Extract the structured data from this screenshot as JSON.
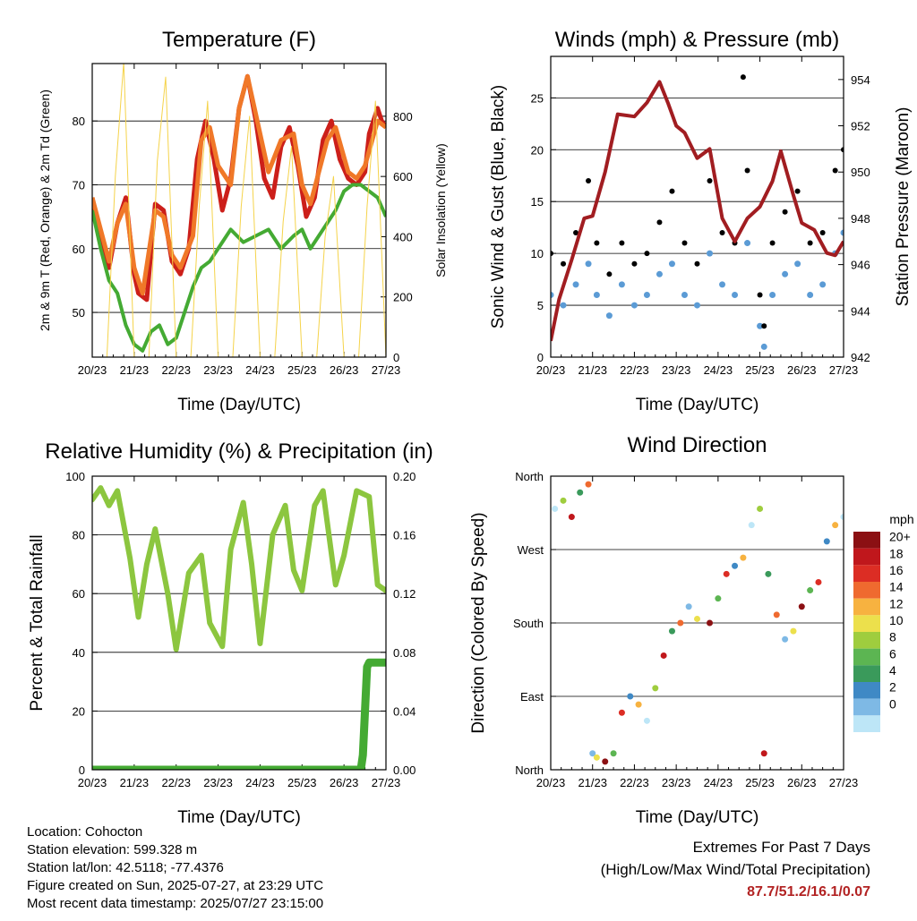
{
  "colors": {
    "temp2m": "#cc1f1a",
    "temp9m": "#f07828",
    "dewpoint": "#44aa33",
    "solar": "#f5d34a",
    "wind": "#5b9bd5",
    "gust": "#000000",
    "pressure": "#a11d21",
    "rh": "#8cc63f",
    "precip": "#44aa33",
    "extreme": "#b22222"
  },
  "chart_data": [
    {
      "type": "line",
      "title": "Temperature (F)",
      "xlabel": "Time (Day/UTC)",
      "ylabel": "2m & 9m T (Red, Orange) & 2m Td (Green)",
      "ylabel_right": "Solar Insolation (Yellow)",
      "x_ticks": [
        "20/23",
        "21/23",
        "22/23",
        "23/23",
        "24/23",
        "25/23",
        "26/23",
        "27/23"
      ],
      "x_range_days": [
        0,
        7
      ],
      "ylim": [
        43,
        89
      ],
      "y_ticks": [
        50,
        60,
        70,
        80
      ],
      "ylim_right": [
        0,
        975
      ],
      "y_ticks_right": [
        0,
        200,
        400,
        600,
        800
      ],
      "series": [
        {
          "name": "2m T",
          "color": "#cc1f1a",
          "x": [
            0,
            0.2,
            0.4,
            0.6,
            0.8,
            1.0,
            1.1,
            1.3,
            1.5,
            1.7,
            1.9,
            2.1,
            2.3,
            2.5,
            2.7,
            2.9,
            3.1,
            3.3,
            3.5,
            3.7,
            3.9,
            4.1,
            4.3,
            4.5,
            4.7,
            4.9,
            5.1,
            5.3,
            5.5,
            5.7,
            5.9,
            6.1,
            6.3,
            6.5,
            6.6,
            6.8,
            6.9,
            7.0
          ],
          "y": [
            68,
            62,
            57,
            64,
            68,
            56,
            53,
            52,
            67,
            66,
            58,
            56,
            60,
            74,
            80,
            74,
            66,
            71,
            82,
            87,
            80,
            71,
            68,
            76,
            79,
            73,
            65,
            68,
            77,
            80,
            74,
            71,
            70,
            72,
            78,
            82,
            80,
            79
          ]
        },
        {
          "name": "9m T",
          "color": "#f07828",
          "x": [
            0,
            0.2,
            0.4,
            0.6,
            0.8,
            1.0,
            1.2,
            1.5,
            1.7,
            1.9,
            2.1,
            2.4,
            2.6,
            2.8,
            3.0,
            3.3,
            3.5,
            3.7,
            3.9,
            4.2,
            4.5,
            4.8,
            5.0,
            5.2,
            5.4,
            5.6,
            5.8,
            6.1,
            6.3,
            6.5,
            6.8,
            7.0
          ],
          "y": [
            68,
            63,
            58,
            64,
            67,
            57,
            53,
            66,
            65,
            59,
            57,
            62,
            77,
            79,
            73,
            70,
            82,
            87,
            81,
            72,
            77,
            78,
            70,
            67,
            72,
            77,
            79,
            72,
            71,
            73,
            80,
            79
          ]
        },
        {
          "name": "2m Td",
          "color": "#44aa33",
          "x": [
            0,
            0.2,
            0.4,
            0.6,
            0.8,
            1.0,
            1.2,
            1.4,
            1.6,
            1.8,
            2.0,
            2.2,
            2.4,
            2.6,
            2.8,
            3.0,
            3.3,
            3.6,
            3.9,
            4.2,
            4.5,
            4.8,
            5.0,
            5.2,
            5.4,
            5.6,
            5.8,
            6.0,
            6.2,
            6.4,
            6.6,
            6.8,
            7.0
          ],
          "y": [
            66,
            60,
            55,
            53,
            48,
            45,
            44,
            47,
            48,
            45,
            46,
            50,
            54,
            57,
            58,
            60,
            63,
            61,
            62,
            63,
            60,
            62,
            63,
            60,
            62,
            64,
            66,
            69,
            70,
            70,
            69,
            68,
            65
          ]
        },
        {
          "name": "Solar",
          "color": "#f5d34a",
          "x": [
            0,
            0.35,
            0.55,
            0.75,
            1.0,
            1.35,
            1.55,
            1.75,
            2.0,
            2.35,
            2.55,
            2.75,
            3.0,
            3.35,
            3.55,
            3.75,
            4.0,
            4.35,
            4.55,
            4.75,
            5.0,
            5.35,
            5.55,
            5.75,
            6.0,
            6.35,
            6.55,
            6.75,
            7.0
          ],
          "y": [
            0,
            0,
            600,
            980,
            0,
            0,
            650,
            930,
            0,
            0,
            500,
            850,
            0,
            0,
            500,
            800,
            0,
            0,
            450,
            700,
            0,
            0,
            400,
            600,
            0,
            0,
            500,
            850,
            0
          ]
        }
      ]
    },
    {
      "type": "scatter",
      "title": "Winds (mph) & Pressure (mb)",
      "xlabel": "Time (Day/UTC)",
      "ylabel": "Sonic Wind & Gust (Blue, Black)",
      "ylabel_right": "Station Pressure (Maroon)",
      "x_ticks": [
        "20/23",
        "21/23",
        "22/23",
        "23/23",
        "24/23",
        "25/23",
        "26/23",
        "27/23"
      ],
      "x_range_days": [
        0,
        7
      ],
      "ylim": [
        0,
        29
      ],
      "y_ticks": [
        0,
        5,
        10,
        15,
        20,
        25
      ],
      "ylim_right": [
        942,
        955
      ],
      "y_ticks_right": [
        942,
        944,
        946,
        948,
        950,
        952,
        954
      ],
      "series": [
        {
          "name": "Sonic Wind",
          "color": "#5b9bd5",
          "x": [
            0,
            0.3,
            0.6,
            0.9,
            1.1,
            1.4,
            1.7,
            2.0,
            2.3,
            2.6,
            2.9,
            3.2,
            3.5,
            3.8,
            4.1,
            4.4,
            4.7,
            5.0,
            5.1,
            5.3,
            5.6,
            5.9,
            6.2,
            6.5,
            6.8,
            7.0
          ],
          "y": [
            6,
            5,
            7,
            9,
            6,
            4,
            7,
            5,
            6,
            8,
            9,
            6,
            5,
            10,
            7,
            6,
            11,
            3,
            1,
            6,
            8,
            9,
            6,
            7,
            10,
            12
          ]
        },
        {
          "name": "Gust",
          "color": "#000000",
          "x": [
            0,
            0.3,
            0.6,
            0.9,
            1.1,
            1.4,
            1.7,
            2.0,
            2.3,
            2.6,
            2.9,
            3.2,
            3.5,
            3.8,
            4.1,
            4.4,
            4.6,
            4.7,
            5.0,
            5.1,
            5.3,
            5.6,
            5.9,
            6.2,
            6.5,
            6.8,
            7.0
          ],
          "y": [
            10,
            9,
            12,
            17,
            11,
            8,
            11,
            9,
            10,
            13,
            16,
            11,
            9,
            17,
            12,
            11,
            27,
            18,
            6,
            3,
            11,
            14,
            16,
            11,
            12,
            18,
            20
          ]
        },
        {
          "name": "Station Pressure",
          "color": "#a11d21",
          "x": [
            0,
            0.2,
            0.5,
            0.8,
            1.0,
            1.3,
            1.6,
            2.0,
            2.3,
            2.6,
            2.8,
            3.0,
            3.2,
            3.5,
            3.8,
            4.1,
            4.4,
            4.7,
            5.0,
            5.3,
            5.5,
            5.8,
            6.0,
            6.3,
            6.6,
            6.8,
            7.0
          ],
          "y": [
            942.7,
            944.5,
            946.2,
            948,
            948.1,
            950,
            952.5,
            952.4,
            953,
            953.9,
            953,
            952,
            951.7,
            950.6,
            951,
            948,
            947,
            948,
            948.5,
            949.6,
            950.9,
            949,
            947.8,
            947.5,
            946.5,
            946.4,
            947
          ]
        }
      ]
    },
    {
      "type": "line",
      "title": "Relative Humidity (%) & Precipitation (in)",
      "xlabel": "Time (Day/UTC)",
      "ylabel": "Percent & Total Rainfall",
      "x_ticks": [
        "20/23",
        "21/23",
        "22/23",
        "23/23",
        "24/23",
        "25/23",
        "26/23",
        "27/23"
      ],
      "x_range_days": [
        0,
        7
      ],
      "ylim": [
        0,
        100
      ],
      "y_ticks": [
        0,
        20,
        40,
        60,
        80,
        100
      ],
      "ylim_right": [
        0,
        0.2
      ],
      "y_ticks_right": [
        "0.00",
        "0.04",
        "0.08",
        "0.12",
        "0.16",
        "0.20"
      ],
      "series": [
        {
          "name": "RH",
          "color": "#8cc63f",
          "x": [
            0,
            0.2,
            0.4,
            0.6,
            0.9,
            1.1,
            1.3,
            1.5,
            1.8,
            2.0,
            2.3,
            2.6,
            2.8,
            3.1,
            3.3,
            3.6,
            3.8,
            4.0,
            4.3,
            4.6,
            4.8,
            5.0,
            5.3,
            5.5,
            5.8,
            6.0,
            6.3,
            6.6,
            6.8,
            7.0
          ],
          "y": [
            92,
            96,
            90,
            95,
            72,
            52,
            70,
            82,
            60,
            41,
            67,
            73,
            50,
            42,
            75,
            91,
            70,
            43,
            80,
            90,
            68,
            61,
            90,
            95,
            63,
            73,
            95,
            93,
            63,
            61
          ]
        },
        {
          "name": "Precipitation",
          "color": "#44aa33",
          "x": [
            0,
            6.4,
            6.45,
            6.5,
            6.55,
            6.6,
            7.0
          ],
          "y": [
            0,
            0,
            0.01,
            0.04,
            0.07,
            0.073,
            0.073
          ]
        }
      ]
    },
    {
      "type": "scatter",
      "title": "Wind Direction",
      "xlabel": "Time (Day/UTC)",
      "ylabel": "Direction (Colored By Speed)",
      "x_ticks": [
        "20/23",
        "21/23",
        "22/23",
        "23/23",
        "24/23",
        "25/23",
        "26/23",
        "27/23"
      ],
      "x_range_days": [
        0,
        7
      ],
      "ylim": [
        0,
        360
      ],
      "y_ticks": [
        "North",
        "East",
        "South",
        "West",
        "North"
      ],
      "legend_title": "mph",
      "legend_labels": [
        "0",
        "2",
        "4",
        "6",
        "8",
        "10",
        "12",
        "14",
        "16",
        "18",
        "20+"
      ],
      "legend_colors": [
        "#bde6f7",
        "#7eb9e5",
        "#3f89c5",
        "#3a9a5b",
        "#5cb552",
        "#9fcd3e",
        "#ece04c",
        "#f7b240",
        "#ef6a2f",
        "#dc2d24",
        "#c0171c",
        "#8b1013"
      ],
      "series": [
        {
          "name": "Direction",
          "x": [
            0.1,
            0.3,
            0.5,
            0.7,
            0.9,
            1.0,
            1.1,
            1.3,
            1.5,
            1.7,
            1.9,
            2.1,
            2.3,
            2.5,
            2.7,
            2.9,
            3.1,
            3.3,
            3.5,
            3.8,
            4.0,
            4.2,
            4.4,
            4.6,
            4.8,
            5.0,
            5.1,
            5.2,
            5.4,
            5.6,
            5.8,
            6.0,
            6.2,
            6.4,
            6.6,
            6.8,
            7.0
          ],
          "y": [
            320,
            330,
            310,
            340,
            350,
            20,
            15,
            10,
            20,
            70,
            90,
            80,
            60,
            100,
            140,
            170,
            180,
            200,
            185,
            180,
            210,
            240,
            250,
            260,
            300,
            320,
            20,
            240,
            190,
            160,
            170,
            200,
            220,
            230,
            280,
            300,
            310
          ]
        }
      ]
    }
  ],
  "info": {
    "location": "Location: Cohocton",
    "elevation": "Station elevation: 599.328 m",
    "latlon": "Station lat/lon: 42.5118; -77.4376",
    "created": "Figure created on Sun, 2025-07-27, at 23:29 UTC",
    "recent": "Most recent data timestamp: 2025/07/27 23:15:00"
  },
  "extremes": {
    "line1": "Extremes For Past 7 Days",
    "line2": "(High/Low/Max Wind/Total Precipitation)",
    "values": "87.7/51.2/16.1/0.07"
  }
}
